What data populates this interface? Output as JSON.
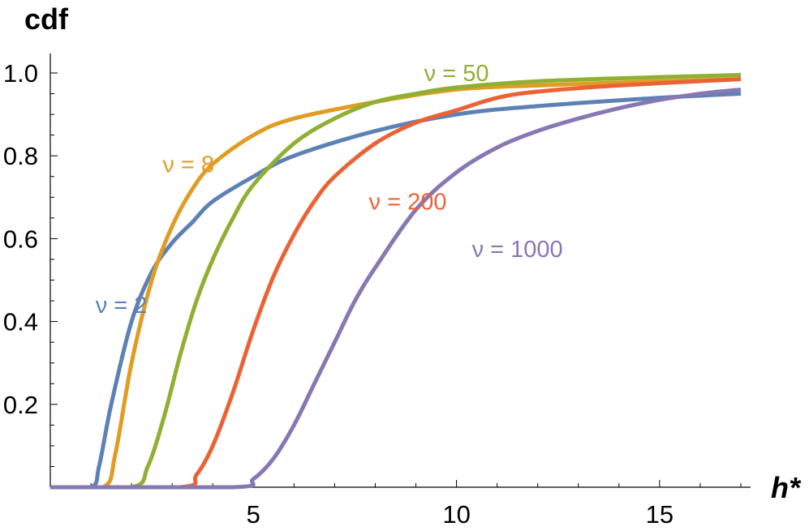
{
  "chart_data": {
    "type": "line",
    "title": "",
    "xlabel": "h*",
    "ylabel": "cdf",
    "xlim": [
      0,
      17
    ],
    "ylim": [
      0,
      1.0
    ],
    "grid": false,
    "x_ticks": [
      5,
      10,
      15
    ],
    "y_ticks": [
      0.2,
      0.4,
      0.6,
      0.8,
      1.0
    ],
    "y_tick_labels": [
      "0.2",
      "0.4",
      "0.6",
      "0.8",
      "1.0"
    ],
    "x_tick_labels": [
      "5",
      "10",
      "15"
    ],
    "series": [
      {
        "name": "ν = 2",
        "color": "#5e81b5",
        "x": [
          0,
          1.0,
          1.2,
          1.5,
          2.0,
          2.5,
          3.0,
          3.5,
          4.0,
          5.0,
          6.0,
          8.0,
          10.0,
          12.0,
          15.0,
          17.0
        ],
        "y": [
          0,
          0,
          0.05,
          0.2,
          0.4,
          0.52,
          0.59,
          0.64,
          0.69,
          0.75,
          0.8,
          0.86,
          0.9,
          0.92,
          0.94,
          0.95
        ]
      },
      {
        "name": "ν = 8",
        "color": "#e19c24",
        "x": [
          0,
          1.3,
          1.6,
          2.0,
          2.5,
          3.0,
          3.5,
          4.0,
          5.0,
          6.0,
          8.0,
          10.0,
          12.0,
          15.0,
          17.0
        ],
        "y": [
          0,
          0,
          0.08,
          0.3,
          0.5,
          0.63,
          0.72,
          0.78,
          0.85,
          0.89,
          0.93,
          0.96,
          0.97,
          0.98,
          0.985
        ]
      },
      {
        "name": "ν = 50",
        "color": "#8fb032",
        "x": [
          0,
          2.0,
          2.4,
          2.8,
          3.2,
          3.6,
          4.0,
          4.5,
          5.0,
          6.0,
          7.0,
          8.0,
          9.0,
          10.0,
          12.0,
          15.0,
          17.0
        ],
        "y": [
          0,
          0,
          0.05,
          0.17,
          0.32,
          0.45,
          0.55,
          0.65,
          0.73,
          0.83,
          0.89,
          0.93,
          0.95,
          0.965,
          0.98,
          0.99,
          0.995
        ]
      },
      {
        "name": "ν = 200",
        "color": "#eb6235",
        "x": [
          0,
          3.2,
          3.6,
          4.0,
          4.5,
          5.0,
          5.5,
          6.0,
          6.5,
          7.0,
          8.0,
          9.0,
          10.0,
          11.0,
          12.0,
          14.0,
          17.0
        ],
        "y": [
          0,
          0,
          0.03,
          0.1,
          0.23,
          0.38,
          0.51,
          0.61,
          0.69,
          0.75,
          0.83,
          0.88,
          0.91,
          0.94,
          0.955,
          0.97,
          0.985
        ]
      },
      {
        "name": "ν = 1000",
        "color": "#8778b3",
        "x": [
          0,
          4.5,
          5.0,
          5.5,
          6.0,
          6.5,
          7.0,
          7.5,
          8.0,
          9.0,
          10.0,
          11.0,
          12.0,
          13.0,
          14.0,
          15.0,
          16.0,
          17.0
        ],
        "y": [
          0,
          0,
          0.02,
          0.07,
          0.15,
          0.25,
          0.35,
          0.45,
          0.53,
          0.67,
          0.76,
          0.82,
          0.86,
          0.89,
          0.915,
          0.935,
          0.95,
          0.96
        ]
      }
    ],
    "annotations": [
      {
        "text": "ν = 2",
        "series": 0,
        "at_x": 1.75,
        "at_y": 0.44
      },
      {
        "text": "ν = 8",
        "series": 1,
        "at_x": 3.4,
        "at_y": 0.78
      },
      {
        "text": "ν = 50",
        "series": 2,
        "at_x": 10.0,
        "at_y": 1.0
      },
      {
        "text": "ν = 200",
        "series": 3,
        "at_x": 8.8,
        "at_y": 0.69
      },
      {
        "text": "ν = 1000",
        "series": 4,
        "at_x": 11.5,
        "at_y": 0.575
      }
    ]
  }
}
